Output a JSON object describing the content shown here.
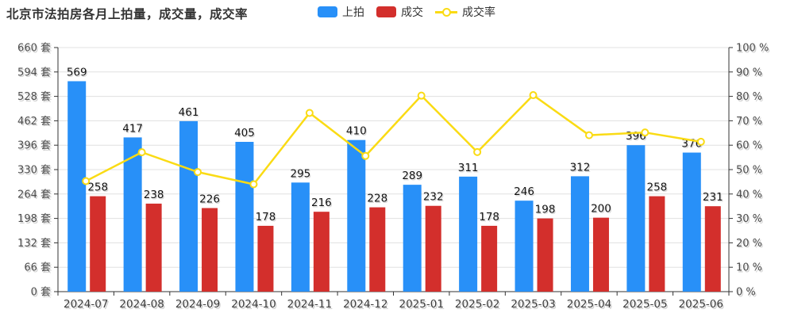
{
  "page": {
    "title": "北京市法拍房各月上拍量，成交量，成交率",
    "background": "#ffffff"
  },
  "legend": {
    "position": "top",
    "items": [
      {
        "label": "上拍",
        "type": "bar",
        "color": "#2890F8"
      },
      {
        "label": "成交",
        "type": "bar",
        "color": "#D32F2C"
      },
      {
        "label": "成交率",
        "type": "line",
        "color": "#FADB14"
      }
    ]
  },
  "chart_data": {
    "type": "bar",
    "title": "北京市法拍房各月上拍量，成交量，成交率",
    "categories": [
      "2024-07",
      "2024-08",
      "2024-09",
      "2024-10",
      "2024-11",
      "2024-12",
      "2025-01",
      "2025-02",
      "2025-03",
      "2025-04",
      "2025-05",
      "2025-06"
    ],
    "series": [
      {
        "name": "上拍",
        "type": "bar",
        "axis": "left",
        "color": "#2890F8",
        "values": [
          569,
          417,
          461,
          405,
          295,
          410,
          289,
          311,
          246,
          312,
          396,
          376
        ]
      },
      {
        "name": "成交",
        "type": "bar",
        "axis": "left",
        "color": "#D32F2C",
        "values": [
          258,
          238,
          226,
          178,
          216,
          228,
          232,
          178,
          198,
          200,
          258,
          231
        ]
      },
      {
        "name": "成交率",
        "type": "line",
        "axis": "right",
        "color": "#FADB14",
        "marker": "hollow-circle",
        "values": [
          45.3,
          57.1,
          49.0,
          44.0,
          73.2,
          55.6,
          80.3,
          57.2,
          80.5,
          64.1,
          65.2,
          61.4
        ]
      }
    ],
    "y_left": {
      "min": 0,
      "max": 660,
      "interval": 66,
      "unit": "套",
      "tick_labels": [
        "0 套",
        "66 套",
        "132 套",
        "198 套",
        "264 套",
        "330 套",
        "396 套",
        "462 套",
        "528 套",
        "594 套",
        "660 套"
      ]
    },
    "y_right": {
      "min": 0,
      "max": 100,
      "interval": 10,
      "unit": "%",
      "tick_labels": [
        "0 %",
        "10 %",
        "20 %",
        "30 %",
        "40 %",
        "50 %",
        "60 %",
        "70 %",
        "80 %",
        "90 %",
        "100 %"
      ]
    },
    "grid": true,
    "grid_color": "#e0e0e0",
    "axis_color": "#333333",
    "legend_position": "top",
    "bar_value_labels": true
  }
}
